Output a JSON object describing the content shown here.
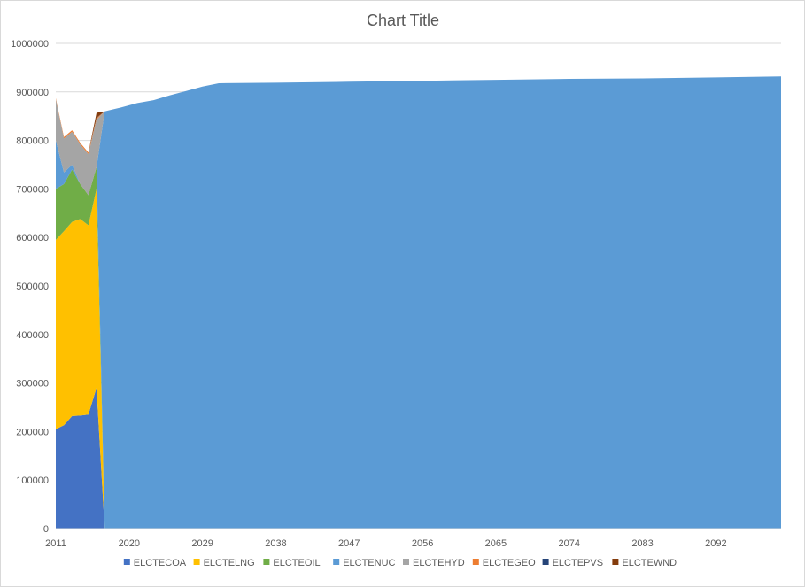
{
  "chart_data": {
    "type": "area",
    "stacked": true,
    "title": "Chart Title",
    "xlabel": "",
    "ylabel": "",
    "ylim": [
      0,
      1000000
    ],
    "xlim": [
      2011,
      2100
    ],
    "x_tick_labels": [
      "2011",
      "2020",
      "2029",
      "2038",
      "2047",
      "2056",
      "2065",
      "2074",
      "2083",
      "2092"
    ],
    "y_tick_labels": [
      "0",
      "100000",
      "200000",
      "300000",
      "400000",
      "500000",
      "600000",
      "700000",
      "800000",
      "900000",
      "1000000"
    ],
    "gridlines": true,
    "legend_position": "bottom",
    "series": [
      {
        "name": "ELCTECOA",
        "color": "#4472C4",
        "values": [
          {
            "x": 2011,
            "y": 205000
          },
          {
            "x": 2012,
            "y": 213000
          },
          {
            "x": 2013,
            "y": 232000
          },
          {
            "x": 2014,
            "y": 233000
          },
          {
            "x": 2015,
            "y": 235000
          },
          {
            "x": 2016,
            "y": 290000
          },
          {
            "x": 2017,
            "y": 0
          },
          {
            "x": 2100,
            "y": 0
          }
        ]
      },
      {
        "name": "ELCTELNG",
        "color": "#FFC000",
        "values": [
          {
            "x": 2011,
            "y": 390000
          },
          {
            "x": 2012,
            "y": 400000
          },
          {
            "x": 2013,
            "y": 400000
          },
          {
            "x": 2014,
            "y": 405000
          },
          {
            "x": 2015,
            "y": 390000
          },
          {
            "x": 2016,
            "y": 410000
          },
          {
            "x": 2017,
            "y": 0
          },
          {
            "x": 2100,
            "y": 0
          }
        ]
      },
      {
        "name": "ELCTEOIL",
        "color": "#70AD47",
        "values": [
          {
            "x": 2011,
            "y": 105000
          },
          {
            "x": 2012,
            "y": 97000
          },
          {
            "x": 2013,
            "y": 108000
          },
          {
            "x": 2014,
            "y": 72000
          },
          {
            "x": 2015,
            "y": 62000
          },
          {
            "x": 2016,
            "y": 45000
          },
          {
            "x": 2017,
            "y": 0
          },
          {
            "x": 2100,
            "y": 0
          }
        ]
      },
      {
        "name": "ELCTENUC",
        "color": "#5B9BD5",
        "values": [
          {
            "x": 2011,
            "y": 100000
          },
          {
            "x": 2012,
            "y": 24000
          },
          {
            "x": 2013,
            "y": 10000
          },
          {
            "x": 2014,
            "y": 0
          },
          {
            "x": 2015,
            "y": 0
          },
          {
            "x": 2016,
            "y": 0
          },
          {
            "x": 2017,
            "y": 860000
          },
          {
            "x": 2019,
            "y": 868000
          },
          {
            "x": 2021,
            "y": 877000
          },
          {
            "x": 2023,
            "y": 883000
          },
          {
            "x": 2025,
            "y": 893000
          },
          {
            "x": 2027,
            "y": 902000
          },
          {
            "x": 2029,
            "y": 911000
          },
          {
            "x": 2031,
            "y": 918000
          },
          {
            "x": 2038,
            "y": 919000
          },
          {
            "x": 2047,
            "y": 921000
          },
          {
            "x": 2056,
            "y": 923000
          },
          {
            "x": 2065,
            "y": 925000
          },
          {
            "x": 2074,
            "y": 927000
          },
          {
            "x": 2083,
            "y": 928000
          },
          {
            "x": 2092,
            "y": 930000
          },
          {
            "x": 2100,
            "y": 932000
          }
        ]
      },
      {
        "name": "ELCTEHYD",
        "color": "#A5A5A5",
        "values": [
          {
            "x": 2011,
            "y": 85000
          },
          {
            "x": 2012,
            "y": 70000
          },
          {
            "x": 2013,
            "y": 68000
          },
          {
            "x": 2014,
            "y": 82000
          },
          {
            "x": 2015,
            "y": 85000
          },
          {
            "x": 2016,
            "y": 98000
          },
          {
            "x": 2017,
            "y": 0
          },
          {
            "x": 2100,
            "y": 0
          }
        ]
      },
      {
        "name": "ELCTEGEO",
        "color": "#ED7D31",
        "values": [
          {
            "x": 2011,
            "y": 2000
          },
          {
            "x": 2012,
            "y": 3000
          },
          {
            "x": 2013,
            "y": 3000
          },
          {
            "x": 2014,
            "y": 3000
          },
          {
            "x": 2015,
            "y": 3000
          },
          {
            "x": 2016,
            "y": 3000
          },
          {
            "x": 2017,
            "y": 0
          },
          {
            "x": 2100,
            "y": 0
          }
        ]
      },
      {
        "name": "ELCTEPVS",
        "color": "#264478",
        "values": [
          {
            "x": 2011,
            "y": 0
          },
          {
            "x": 2012,
            "y": 0
          },
          {
            "x": 2013,
            "y": 0
          },
          {
            "x": 2014,
            "y": 0
          },
          {
            "x": 2015,
            "y": 0
          },
          {
            "x": 2016,
            "y": 1000
          },
          {
            "x": 2017,
            "y": 0
          },
          {
            "x": 2100,
            "y": 0
          }
        ]
      },
      {
        "name": "ELCTEWND",
        "color": "#843C0C",
        "values": [
          {
            "x": 2011,
            "y": 0
          },
          {
            "x": 2012,
            "y": 0
          },
          {
            "x": 2013,
            "y": 0
          },
          {
            "x": 2014,
            "y": 0
          },
          {
            "x": 2015,
            "y": 0
          },
          {
            "x": 2016,
            "y": 10000
          },
          {
            "x": 2017,
            "y": 0
          },
          {
            "x": 2100,
            "y": 0
          }
        ]
      }
    ]
  }
}
